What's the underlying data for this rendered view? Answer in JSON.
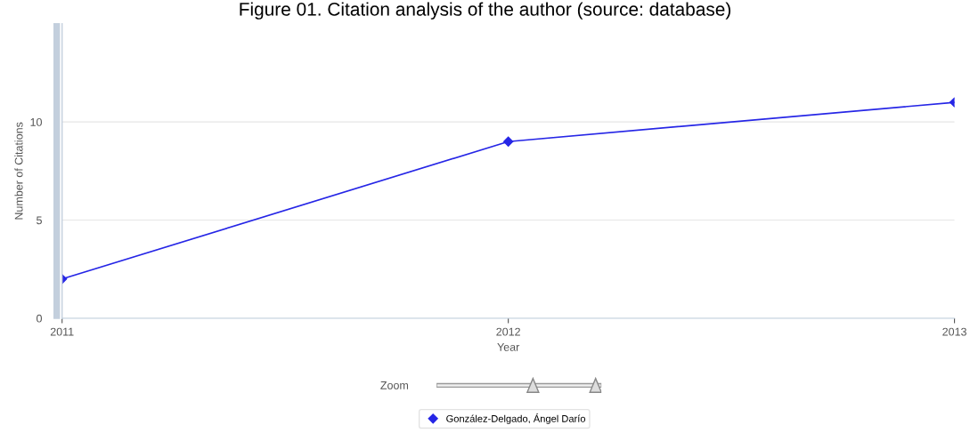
{
  "chart_data": {
    "type": "line",
    "title": "Figure 01. Citation analysis of the author (source: database)",
    "xlabel": "Year",
    "ylabel": "Number of Citations",
    "x": [
      2011,
      2012,
      2013
    ],
    "series": [
      {
        "name": "González-Delgado, Ángel Darío",
        "color": "#2626e6",
        "values": [
          2,
          9,
          11
        ]
      }
    ],
    "xlim": [
      2011,
      2013
    ],
    "xticks": [
      2011,
      2012,
      2013
    ],
    "ylim": [
      0,
      15
    ],
    "yticks": [
      0,
      5,
      10
    ],
    "grid": "y",
    "legend": "bottom",
    "marker": "diamond",
    "line_style": "solid",
    "annotations": [
      "Zoom"
    ]
  }
}
